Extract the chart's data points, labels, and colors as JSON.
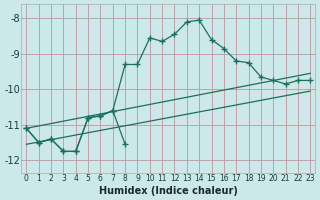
{
  "xlabel": "Humidex (Indice chaleur)",
  "bg_color": "#cce8e8",
  "grid_color": "#c0a0a8",
  "line_color": "#1a7060",
  "xlim_min": -0.4,
  "xlim_max": 23.4,
  "ylim_min": -12.35,
  "ylim_max": -7.6,
  "yticks": [
    -12,
    -11,
    -10,
    -9,
    -8
  ],
  "xticks": [
    0,
    1,
    2,
    3,
    4,
    5,
    6,
    7,
    8,
    9,
    10,
    11,
    12,
    13,
    14,
    15,
    16,
    17,
    18,
    19,
    20,
    21,
    22,
    23
  ],
  "curve1_x": [
    0,
    1,
    2,
    3,
    4,
    5,
    6,
    7,
    8,
    9,
    10,
    11,
    12,
    13,
    14,
    15,
    16,
    17,
    18,
    19,
    20,
    21,
    22,
    23
  ],
  "curve1_y": [
    -11.1,
    -11.5,
    -11.4,
    -11.75,
    -11.75,
    -10.8,
    -10.75,
    -10.6,
    -9.3,
    -9.3,
    -8.55,
    -8.65,
    -8.45,
    -8.1,
    -8.05,
    -8.6,
    -8.85,
    -9.2,
    -9.25,
    -9.65,
    -9.75,
    -9.85,
    -9.75,
    -9.75
  ],
  "curve2_x": [
    0,
    1,
    2,
    3,
    4,
    5,
    6,
    7,
    8
  ],
  "curve2_y": [
    -11.1,
    -11.5,
    -11.4,
    -11.75,
    -11.75,
    -10.8,
    -10.75,
    -10.6,
    -11.55
  ],
  "trend1_x": [
    0,
    23
  ],
  "trend1_y": [
    -11.1,
    -9.55
  ],
  "trend2_x": [
    0,
    23
  ],
  "trend2_y": [
    -11.55,
    -10.05
  ]
}
